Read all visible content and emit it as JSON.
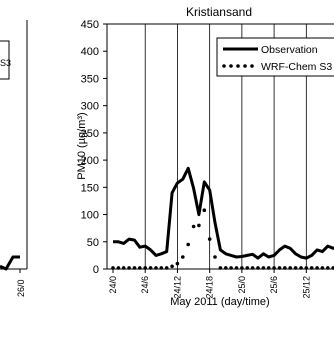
{
  "chart_data": [
    {
      "panel": "left-partial",
      "type": "line",
      "legend_fragment": "S3",
      "x_tick_labels": [
        "26/0"
      ],
      "series": [
        {
          "values_tail": [
            5,
            0,
            22,
            22
          ]
        }
      ]
    },
    {
      "panel": "right",
      "type": "line",
      "title": "Kristiansand",
      "xlabel": "May 2011 (day/time)",
      "ylabel": "PM10 (µg/m³)",
      "ylim": [
        0,
        450
      ],
      "yticks": [
        0,
        50,
        100,
        150,
        200,
        250,
        300,
        350,
        400,
        450
      ],
      "x_tick_labels": [
        "24/0",
        "24/6",
        "24/12",
        "24/18",
        "25/0",
        "25/6",
        "25/12",
        "25/18"
      ],
      "x_tick_hours": [
        0,
        6,
        12,
        18,
        24,
        30,
        36,
        42
      ],
      "x_hours": [
        0,
        1,
        2,
        3,
        4,
        5,
        6,
        7,
        8,
        9,
        10,
        11,
        12,
        13,
        14,
        15,
        16,
        17,
        18,
        19,
        20,
        21,
        22,
        23,
        24,
        25,
        26,
        27,
        28,
        29,
        30,
        31,
        32,
        33,
        34,
        35,
        36,
        37,
        38,
        39,
        40,
        41,
        42,
        43,
        44,
        45
      ],
      "grid": "vertical lines at x ticks",
      "legend": "top-right",
      "series": [
        {
          "name": "Observation",
          "style": "solid",
          "values": [
            50,
            50,
            47,
            55,
            53,
            40,
            42,
            35,
            25,
            28,
            32,
            140,
            158,
            165,
            185,
            148,
            100,
            160,
            145,
            85,
            35,
            28,
            25,
            22,
            23,
            25,
            27,
            20,
            28,
            22,
            25,
            35,
            42,
            38,
            28,
            22,
            20,
            25,
            35,
            32,
            42,
            38,
            40,
            45,
            45,
            42
          ]
        },
        {
          "name": "WRF-Chem S3",
          "style": "dotted",
          "values": [
            2,
            2,
            2,
            2,
            2,
            2,
            2,
            2,
            2,
            2,
            2,
            5,
            10,
            22,
            45,
            78,
            80,
            108,
            55,
            22,
            2,
            2,
            2,
            2,
            2,
            2,
            2,
            2,
            2,
            2,
            2,
            2,
            2,
            2,
            2,
            2,
            2,
            2,
            2,
            2,
            2,
            2,
            2,
            2,
            2,
            2
          ]
        }
      ]
    }
  ]
}
